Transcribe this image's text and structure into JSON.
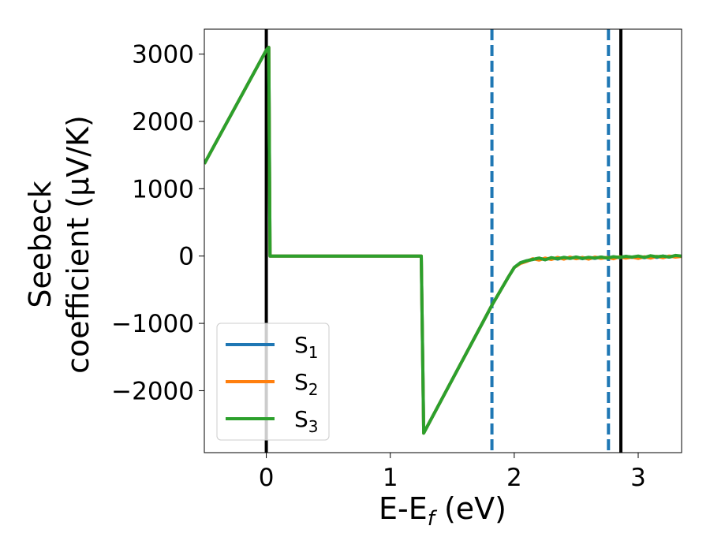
{
  "chart_data": {
    "type": "line",
    "title": "",
    "xlabel": "E-E",
    "xlabel_sub": "f",
    "xlabel_unit": " (eV)",
    "ylabel_line1": "Seebeck",
    "ylabel_line2": "coefficient  (μV/K)",
    "xlim": [
      -0.5,
      3.35
    ],
    "ylim": [
      -2920,
      3370
    ],
    "xticks": [
      0,
      1,
      2,
      3
    ],
    "yticks": [
      -2000,
      -1000,
      0,
      1000,
      2000,
      3000
    ],
    "ytick_labels": [
      "−2000",
      "−1000",
      "0",
      "1000",
      "2000",
      "3000"
    ],
    "grid": false,
    "legend_position": "lower-left",
    "vlines": [
      {
        "x": 0.0,
        "style": "solid",
        "color": "#000000"
      },
      {
        "x": 2.86,
        "style": "solid",
        "color": "#000000"
      },
      {
        "x": 1.82,
        "style": "dashed",
        "color": "#1f77b4"
      },
      {
        "x": 2.76,
        "style": "dashed",
        "color": "#1f77b4"
      }
    ],
    "series": [
      {
        "name": "S",
        "sub": "1",
        "color": "#1f77b4",
        "points": [
          [
            -0.5,
            1370
          ],
          [
            0.0,
            3060
          ],
          [
            0.02,
            3100
          ],
          [
            0.03,
            0
          ],
          [
            1.25,
            0
          ],
          [
            1.27,
            -2630
          ],
          [
            1.82,
            -730
          ],
          [
            1.95,
            -320
          ],
          [
            2.0,
            -170
          ],
          [
            2.05,
            -100
          ],
          [
            2.1,
            -70
          ],
          [
            2.15,
            -50
          ],
          [
            2.2,
            -30
          ],
          [
            2.25,
            -55
          ],
          [
            2.3,
            -25
          ],
          [
            2.35,
            -45
          ],
          [
            2.4,
            -20
          ],
          [
            2.45,
            -35
          ],
          [
            2.5,
            -15
          ],
          [
            2.55,
            -40
          ],
          [
            2.6,
            -20
          ],
          [
            2.65,
            -35
          ],
          [
            2.7,
            -15
          ],
          [
            2.75,
            -30
          ],
          [
            2.8,
            -10
          ],
          [
            2.85,
            -25
          ],
          [
            2.9,
            -5
          ],
          [
            2.95,
            -20
          ],
          [
            3.0,
            -10
          ],
          [
            3.05,
            -25
          ],
          [
            3.1,
            -5
          ],
          [
            3.15,
            -20
          ],
          [
            3.2,
            0
          ],
          [
            3.25,
            -15
          ],
          [
            3.3,
            5
          ],
          [
            3.35,
            -5
          ]
        ]
      },
      {
        "name": "S",
        "sub": "2",
        "color": "#ff7f0e",
        "points": [
          [
            -0.5,
            1370
          ],
          [
            0.0,
            3060
          ],
          [
            0.02,
            3100
          ],
          [
            0.03,
            0
          ],
          [
            1.25,
            0
          ],
          [
            1.27,
            -2630
          ],
          [
            1.82,
            -730
          ],
          [
            1.95,
            -320
          ],
          [
            2.0,
            -170
          ],
          [
            2.05,
            -110
          ],
          [
            2.1,
            -80
          ],
          [
            2.15,
            -40
          ],
          [
            2.2,
            -60
          ],
          [
            2.25,
            -30
          ],
          [
            2.3,
            -50
          ],
          [
            2.35,
            -20
          ],
          [
            2.4,
            -45
          ],
          [
            2.45,
            -15
          ],
          [
            2.5,
            -40
          ],
          [
            2.55,
            -20
          ],
          [
            2.6,
            -45
          ],
          [
            2.65,
            -15
          ],
          [
            2.7,
            -35
          ],
          [
            2.75,
            -20
          ],
          [
            2.8,
            -40
          ],
          [
            2.85,
            -10
          ],
          [
            2.9,
            -30
          ],
          [
            2.95,
            -15
          ],
          [
            3.0,
            -35
          ],
          [
            3.05,
            -10
          ],
          [
            3.1,
            -30
          ],
          [
            3.15,
            -5
          ],
          [
            3.2,
            -25
          ],
          [
            3.25,
            0
          ],
          [
            3.3,
            -15
          ],
          [
            3.35,
            -5
          ]
        ]
      },
      {
        "name": "S",
        "sub": "3",
        "color": "#2ca02c",
        "points": [
          [
            -0.5,
            1370
          ],
          [
            0.0,
            3060
          ],
          [
            0.02,
            3100
          ],
          [
            0.03,
            0
          ],
          [
            1.25,
            0
          ],
          [
            1.27,
            -2630
          ],
          [
            1.82,
            -730
          ],
          [
            1.95,
            -320
          ],
          [
            2.0,
            -170
          ],
          [
            2.05,
            -100
          ],
          [
            2.1,
            -70
          ],
          [
            2.15,
            -50
          ],
          [
            2.2,
            -30
          ],
          [
            2.25,
            -55
          ],
          [
            2.3,
            -25
          ],
          [
            2.35,
            -40
          ],
          [
            2.4,
            -20
          ],
          [
            2.45,
            -35
          ],
          [
            2.5,
            -15
          ],
          [
            2.55,
            -35
          ],
          [
            2.6,
            -20
          ],
          [
            2.65,
            -30
          ],
          [
            2.7,
            -15
          ],
          [
            2.75,
            -30
          ],
          [
            2.8,
            -10
          ],
          [
            2.85,
            -20
          ],
          [
            2.9,
            -5
          ],
          [
            2.95,
            -15
          ],
          [
            3.0,
            0
          ],
          [
            3.05,
            -20
          ],
          [
            3.1,
            5
          ],
          [
            3.15,
            -10
          ],
          [
            3.2,
            0
          ],
          [
            3.25,
            -15
          ],
          [
            3.3,
            10
          ],
          [
            3.35,
            0
          ]
        ]
      }
    ]
  }
}
